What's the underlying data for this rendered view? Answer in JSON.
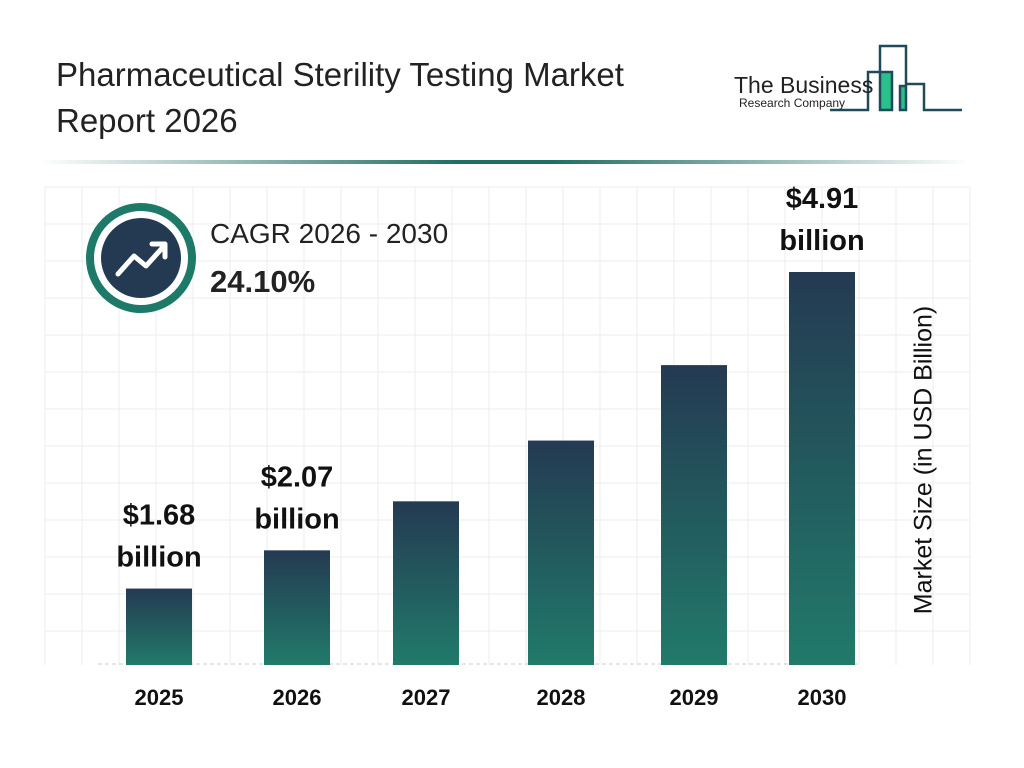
{
  "header": {
    "title_line1": "Pharmaceutical Sterility Testing Market",
    "title_line2": "Report 2026"
  },
  "logo": {
    "line1": "The Business",
    "line2": "Research Company"
  },
  "cagr": {
    "label": "CAGR 2026 - 2030",
    "value": "24.10%",
    "icon": "trend-up-arrow-icon"
  },
  "colors": {
    "bar_top": "#243a52",
    "bar_bottom": "#217a6a",
    "accent": "#1e7a68",
    "logo_green": "#2bbf8a"
  },
  "chart_data": {
    "type": "bar",
    "categories": [
      "2025",
      "2026",
      "2027",
      "2028",
      "2029",
      "2030"
    ],
    "values": [
      1.68,
      2.07,
      2.57,
      3.19,
      3.96,
      4.91
    ],
    "data_labels": [
      {
        "index": 0,
        "line1": "$1.68",
        "line2": "billion"
      },
      {
        "index": 1,
        "line1": "$2.07",
        "line2": "billion"
      },
      {
        "index": 5,
        "line1": "$4.91",
        "line2": "billion"
      }
    ],
    "title": "Pharmaceutical Sterility Testing Market Report 2026",
    "xlabel": "",
    "ylabel": "Market Size (in USD Billion)",
    "grid": true
  }
}
